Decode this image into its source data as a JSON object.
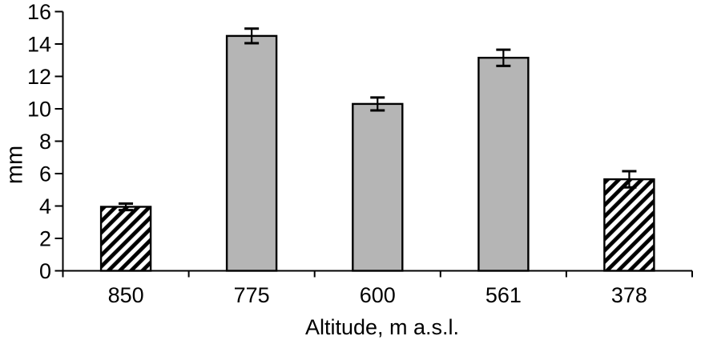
{
  "figure": {
    "background": "#ffffff"
  },
  "chart_data": {
    "type": "bar",
    "title": "",
    "xlabel": "Altitude, m a.s.l.",
    "ylabel": "mm",
    "categories": [
      "850",
      "775",
      "600",
      "561",
      "378"
    ],
    "values": [
      3.95,
      14.5,
      10.3,
      13.15,
      5.65
    ],
    "errors": [
      0.2,
      0.45,
      0.4,
      0.5,
      0.5
    ],
    "bar_styles": [
      "hatched",
      "solid",
      "solid",
      "solid",
      "hatched"
    ],
    "yticks": [
      0,
      2,
      4,
      6,
      8,
      10,
      12,
      14,
      16
    ],
    "ylim": [
      0,
      16
    ],
    "grid": false,
    "legend": "none",
    "error_bars": true,
    "colors": {
      "solid_fill": "#b5b5b5",
      "hatch_fill": "#ffffff",
      "hatch_stroke": "#000000",
      "bar_border": "#000000",
      "axis": "#000000",
      "text": "#000000"
    }
  }
}
